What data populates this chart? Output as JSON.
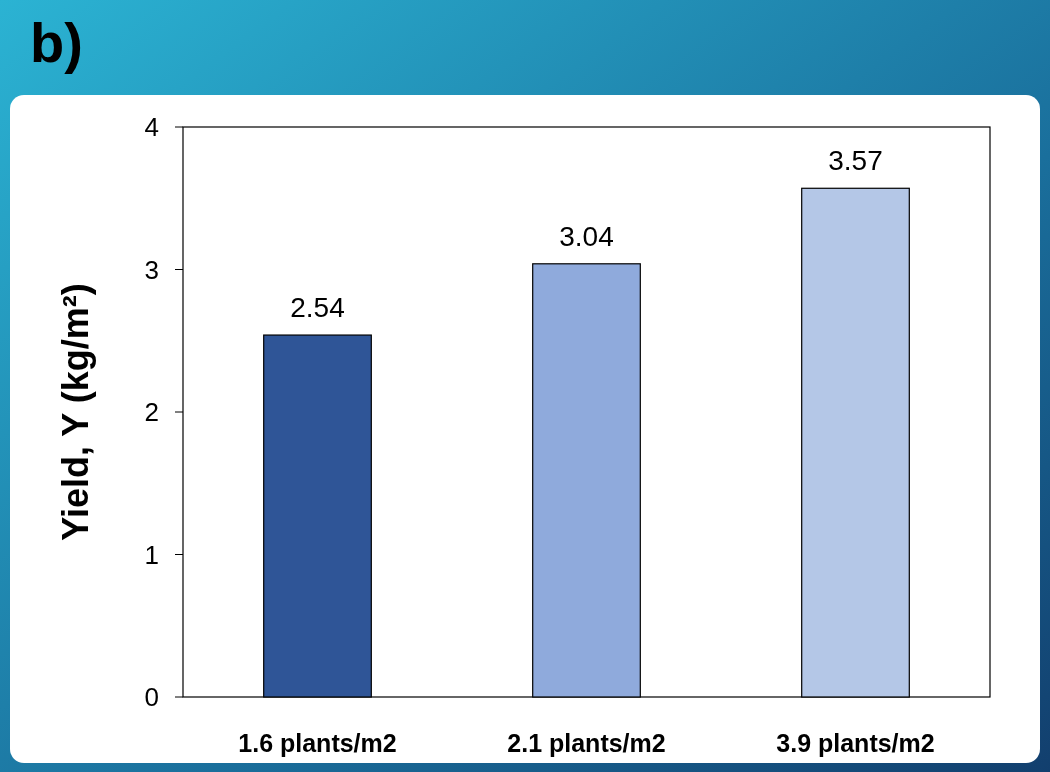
{
  "chart_data": {
    "type": "bar",
    "title": "b)",
    "ylabel": "Yield, Y (kg/m²)",
    "categories": [
      "1.6 plants/m2",
      "2.1 plants/m2",
      "3.9 plants/m2"
    ],
    "values": [
      2.54,
      3.04,
      3.57
    ],
    "colors": [
      "#2f5597",
      "#8faadc",
      "#b4c7e7"
    ],
    "ylim": [
      0,
      4
    ],
    "yticks": [
      0,
      1,
      2,
      3,
      4
    ],
    "grid": false,
    "data_labels": true
  }
}
